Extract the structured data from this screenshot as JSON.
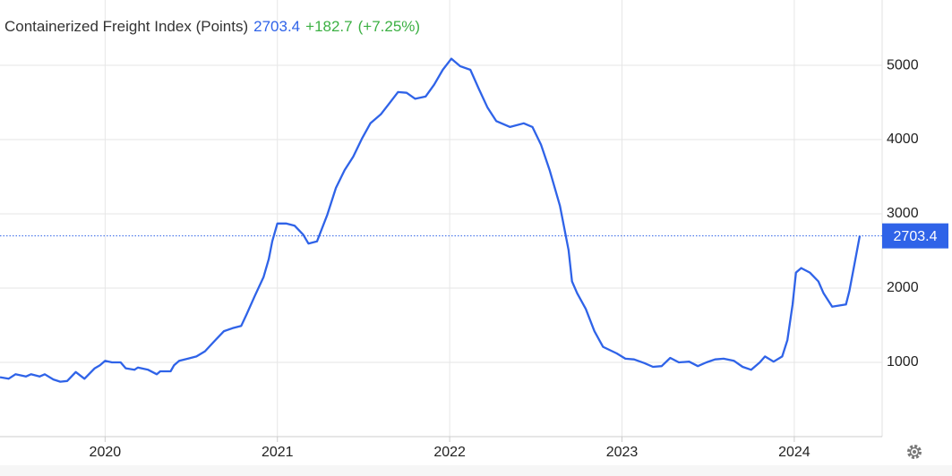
{
  "chart_data": {
    "type": "line",
    "title": "Containerized Freight Index (Points)",
    "change": "+182.7",
    "change_pct": "(+7.25%)",
    "color": "#2f63e8",
    "change_color": "#3cb043",
    "grid": true,
    "x": [
      2019.39,
      2019.44,
      2019.48,
      2019.54,
      2019.57,
      2019.62,
      2019.65,
      2019.7,
      2019.74,
      2019.78,
      2019.83,
      2019.88,
      2019.94,
      2019.97,
      2020.0,
      2020.04,
      2020.09,
      2020.12,
      2020.17,
      2020.19,
      2020.25,
      2020.3,
      2020.32,
      2020.38,
      2020.4,
      2020.43,
      2020.48,
      2020.53,
      2020.58,
      2020.64,
      2020.69,
      2020.74,
      2020.79,
      2020.82,
      2020.87,
      2020.92,
      2020.95,
      2020.97,
      2021.0,
      2021.05,
      2021.1,
      2021.15,
      2021.18,
      2021.23,
      2021.29,
      2021.34,
      2021.39,
      2021.44,
      2021.49,
      2021.54,
      2021.6,
      2021.65,
      2021.7,
      2021.75,
      2021.8,
      2021.86,
      2021.91,
      2021.96,
      2022.01,
      2022.06,
      2022.12,
      2022.17,
      2022.22,
      2022.27,
      2022.35,
      2022.43,
      2022.48,
      2022.53,
      2022.58,
      2022.64,
      2022.69,
      2022.71,
      2022.74,
      2022.79,
      2022.84,
      2022.89,
      2022.97,
      2023.02,
      2023.07,
      2023.13,
      2023.18,
      2023.23,
      2023.28,
      2023.33,
      2023.39,
      2023.44,
      2023.49,
      2023.54,
      2023.59,
      2023.65,
      2023.7,
      2023.75,
      2023.8,
      2023.83,
      2023.88,
      2023.93,
      2023.96,
      2023.99,
      2024.01,
      2024.04,
      2024.09,
      2024.14,
      2024.17,
      2024.22,
      2024.3,
      2024.32,
      2024.35,
      2024.38
    ],
    "values": [
      800,
      780,
      840,
      810,
      840,
      810,
      840,
      770,
      740,
      750,
      870,
      780,
      920,
      960,
      1020,
      1000,
      1000,
      920,
      900,
      930,
      900,
      840,
      880,
      880,
      960,
      1020,
      1050,
      1080,
      1150,
      1300,
      1420,
      1460,
      1490,
      1640,
      1900,
      2150,
      2390,
      2630,
      2870,
      2870,
      2840,
      2720,
      2600,
      2630,
      2990,
      3350,
      3590,
      3770,
      4010,
      4220,
      4340,
      4490,
      4640,
      4630,
      4550,
      4580,
      4740,
      4940,
      5090,
      4990,
      4940,
      4680,
      4430,
      4250,
      4170,
      4220,
      4170,
      3930,
      3590,
      3110,
      2510,
      2090,
      1930,
      1720,
      1420,
      1210,
      1120,
      1050,
      1040,
      990,
      940,
      950,
      1060,
      1000,
      1010,
      950,
      1000,
      1040,
      1050,
      1020,
      940,
      900,
      1000,
      1080,
      1010,
      1080,
      1300,
      1780,
      2210,
      2270,
      2210,
      2090,
      1930,
      1750,
      1780,
      1960,
      2330,
      2703.4
    ],
    "xlim": [
      2019.39,
      2024.51
    ],
    "xticks": [
      2020,
      2021,
      2022,
      2023,
      2024
    ],
    "ylim": [
      0,
      5880
    ],
    "yticks": [
      1000,
      2000,
      3000,
      4000,
      5000
    ]
  }
}
